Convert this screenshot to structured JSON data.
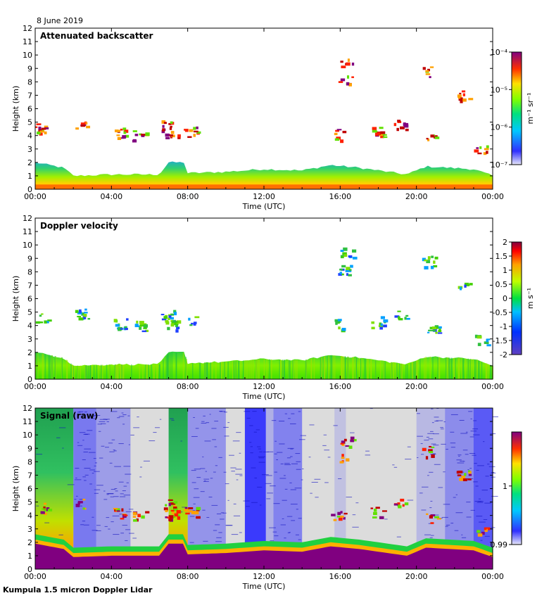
{
  "date": "8 June 2019",
  "footer": "Kumpula 1.5 micron Doppler Lidar",
  "chart_data": [
    {
      "type": "heatmap",
      "title": "Attenuated backscatter",
      "xlabel": "Time (UTC)",
      "ylabel": "Height (km)",
      "xticks": [
        "00:00",
        "04:00",
        "08:00",
        "12:00",
        "16:00",
        "20:00",
        "00:00"
      ],
      "yticks": [
        0,
        1,
        2,
        3,
        4,
        5,
        6,
        7,
        8,
        9,
        10,
        11,
        12
      ],
      "xlim_hours": [
        0,
        24
      ],
      "ylim_km": [
        0,
        12
      ],
      "colorbar": {
        "unit": "m⁻¹ sr⁻¹",
        "ticks": [
          "10⁻⁴",
          "10⁻⁵",
          "10⁻⁶",
          "10⁻⁷"
        ],
        "range": [
          1e-07,
          0.0001
        ],
        "scale": "log"
      },
      "boundary_layer_top_km": [
        {
          "t": 0,
          "h": 2.0
        },
        {
          "t": 1.5,
          "h": 1.6
        },
        {
          "t": 2,
          "h": 1.0
        },
        {
          "t": 4,
          "h": 1.1
        },
        {
          "t": 6.5,
          "h": 1.1
        },
        {
          "t": 7,
          "h": 2.0
        },
        {
          "t": 7.8,
          "h": 2.0
        },
        {
          "t": 8,
          "h": 1.2
        },
        {
          "t": 10,
          "h": 1.3
        },
        {
          "t": 12,
          "h": 1.5
        },
        {
          "t": 14,
          "h": 1.4
        },
        {
          "t": 15.5,
          "h": 1.8
        },
        {
          "t": 17,
          "h": 1.6
        },
        {
          "t": 19.5,
          "h": 1.1
        },
        {
          "t": 20.5,
          "h": 1.7
        },
        {
          "t": 23,
          "h": 1.5
        },
        {
          "t": 24,
          "h": 1.0
        }
      ],
      "cloud_features": [
        {
          "t": 0.2,
          "h": 4.6
        },
        {
          "t": 2.3,
          "h": 4.9
        },
        {
          "t": 4.3,
          "h": 4.2
        },
        {
          "t": 5.3,
          "h": 4.0
        },
        {
          "t": 6.8,
          "h": 4.8
        },
        {
          "t": 7.0,
          "h": 4.1
        },
        {
          "t": 8.0,
          "h": 4.3
        },
        {
          "t": 16.2,
          "h": 9.5
        },
        {
          "t": 16.1,
          "h": 8.2
        },
        {
          "t": 15.7,
          "h": 4.1
        },
        {
          "t": 17.8,
          "h": 4.3
        },
        {
          "t": 19.0,
          "h": 4.9
        },
        {
          "t": 20.5,
          "h": 8.8
        },
        {
          "t": 20.7,
          "h": 3.8
        },
        {
          "t": 22.3,
          "h": 7.0
        },
        {
          "t": 23.2,
          "h": 3.0
        }
      ]
    },
    {
      "type": "heatmap",
      "title": "Doppler velocity",
      "xlabel": "Time (UTC)",
      "ylabel": "Height (km)",
      "xticks": [
        "00:00",
        "04:00",
        "08:00",
        "12:00",
        "16:00",
        "20:00",
        "00:00"
      ],
      "yticks": [
        0,
        1,
        2,
        3,
        4,
        5,
        6,
        7,
        8,
        9,
        10,
        11,
        12
      ],
      "xlim_hours": [
        0,
        24
      ],
      "ylim_km": [
        0,
        12
      ],
      "colorbar": {
        "unit": "m s⁻¹",
        "ticks": [
          "2",
          "1.5",
          "1",
          "0.5",
          "0",
          "-0.5",
          "-1",
          "-1.5",
          "-2"
        ],
        "range": [
          -2,
          2
        ],
        "scale": "linear"
      }
    },
    {
      "type": "heatmap",
      "title": "Signal (raw)",
      "xlabel": "Time (UTC)",
      "ylabel": "Height (km)",
      "xticks": [
        "00:00",
        "04:00",
        "08:00",
        "12:00",
        "16:00",
        "20:00",
        "00:00"
      ],
      "yticks": [
        0,
        1,
        2,
        3,
        4,
        5,
        6,
        7,
        8,
        9,
        10,
        11,
        12
      ],
      "xlim_hours": [
        0,
        24
      ],
      "ylim_km": [
        0,
        12
      ],
      "colorbar": {
        "unit": "",
        "ticks": [
          "1",
          "0.99"
        ],
        "range": [
          0.99,
          1.01
        ],
        "scale": "linear"
      }
    }
  ]
}
